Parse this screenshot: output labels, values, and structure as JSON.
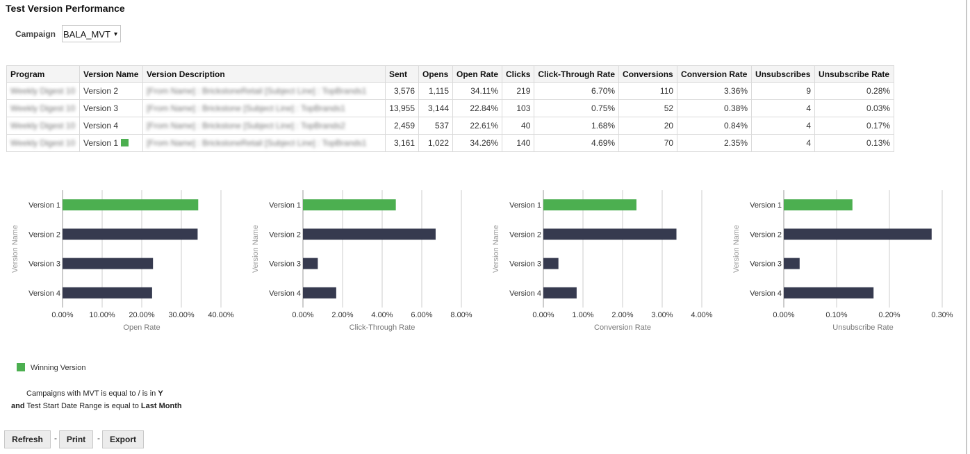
{
  "page_title": "Test Version Performance",
  "campaign": {
    "label": "Campaign",
    "value": "BALA_MVT",
    "caret": "▾"
  },
  "table": {
    "headers": [
      "Program",
      "Version Name",
      "Version Description",
      "Sent",
      "Opens",
      "Open Rate",
      "Clicks",
      "Click-Through Rate",
      "Conversions",
      "Conversion Rate",
      "Unsubscribes",
      "Unsubscribe Rate"
    ],
    "rows": [
      [
        "Weekly Digest 10",
        "Version 2",
        "[From Name] : BrickstoneRetail<br>[Subject Line] : TopBrands1",
        "3,576",
        "1,115",
        "34.11%",
        "219",
        "6.70%",
        "110",
        "3.36%",
        "9",
        "0.28%"
      ],
      [
        "Weekly Digest 10",
        "Version 3",
        "[From Name] : Brickstone<br>[Subject Line] : TopBrands1",
        "13,955",
        "3,144",
        "22.84%",
        "103",
        "0.75%",
        "52",
        "0.38%",
        "4",
        "0.03%"
      ],
      [
        "Weekly Digest 10",
        "Version 4",
        "[From Name] : Brickstone<br>[Subject Line] : TopBrands2",
        "2,459",
        "537",
        "22.61%",
        "40",
        "1.68%",
        "20",
        "0.84%",
        "4",
        "0.17%"
      ],
      [
        "Weekly Digest 10",
        "Version 1",
        "[From Name] : BrickstoneRetail<br>[Subject Line] : TopBrands1",
        "3,161",
        "1,022",
        "34.26%",
        "140",
        "4.69%",
        "70",
        "2.35%",
        "4",
        "0.13%"
      ]
    ],
    "winning_row": 3
  },
  "colors": {
    "winner": "#4caf50",
    "other": "#363a4f",
    "grid": "#cccccc"
  },
  "chart_data": [
    {
      "type": "bar",
      "orientation": "horizontal",
      "categories": [
        "Version 1",
        "Version 2",
        "Version 3",
        "Version 4"
      ],
      "values": [
        34.26,
        34.11,
        22.84,
        22.61
      ],
      "xlim": [
        0,
        40
      ],
      "ticks": [
        "0.00%",
        "10.00%",
        "20.00%",
        "30.00%",
        "40.00%"
      ],
      "xlabel": "Open Rate",
      "ylabel": "Version Name",
      "winner_index": 0,
      "grid": true
    },
    {
      "type": "bar",
      "orientation": "horizontal",
      "categories": [
        "Version 1",
        "Version 2",
        "Version 3",
        "Version 4"
      ],
      "values": [
        4.69,
        6.7,
        0.75,
        1.68
      ],
      "xlim": [
        0,
        8
      ],
      "ticks": [
        "0.00%",
        "2.00%",
        "4.00%",
        "6.00%",
        "8.00%"
      ],
      "xlabel": "Click-Through Rate",
      "ylabel": "Version Name",
      "winner_index": 0,
      "grid": true
    },
    {
      "type": "bar",
      "orientation": "horizontal",
      "categories": [
        "Version 1",
        "Version 2",
        "Version 3",
        "Version 4"
      ],
      "values": [
        2.35,
        3.36,
        0.38,
        0.84
      ],
      "xlim": [
        0,
        4
      ],
      "ticks": [
        "0.00%",
        "1.00%",
        "2.00%",
        "3.00%",
        "4.00%"
      ],
      "xlabel": "Conversion Rate",
      "ylabel": "Version Name",
      "winner_index": 0,
      "grid": true
    },
    {
      "type": "bar",
      "orientation": "horizontal",
      "categories": [
        "Version 1",
        "Version 2",
        "Version 3",
        "Version 4"
      ],
      "values": [
        0.13,
        0.28,
        0.03,
        0.17
      ],
      "xlim": [
        0,
        0.3
      ],
      "ticks": [
        "0.00%",
        "0.10%",
        "0.20%",
        "0.30%"
      ],
      "xlabel": "Unsubscribe Rate",
      "ylabel": "Version Name",
      "winner_index": 0,
      "grid": true
    }
  ],
  "legend": {
    "label": "Winning Version"
  },
  "filters": {
    "line1_prefix": "Campaigns with MVT is equal to / is in",
    "line1_value": "Y",
    "line2_and": "and",
    "line2_prefix": "Test Start Date Range is equal to",
    "line2_value": "Last Month"
  },
  "buttons": {
    "refresh": "Refresh",
    "print": "Print",
    "export": "Export",
    "separator": "-"
  }
}
